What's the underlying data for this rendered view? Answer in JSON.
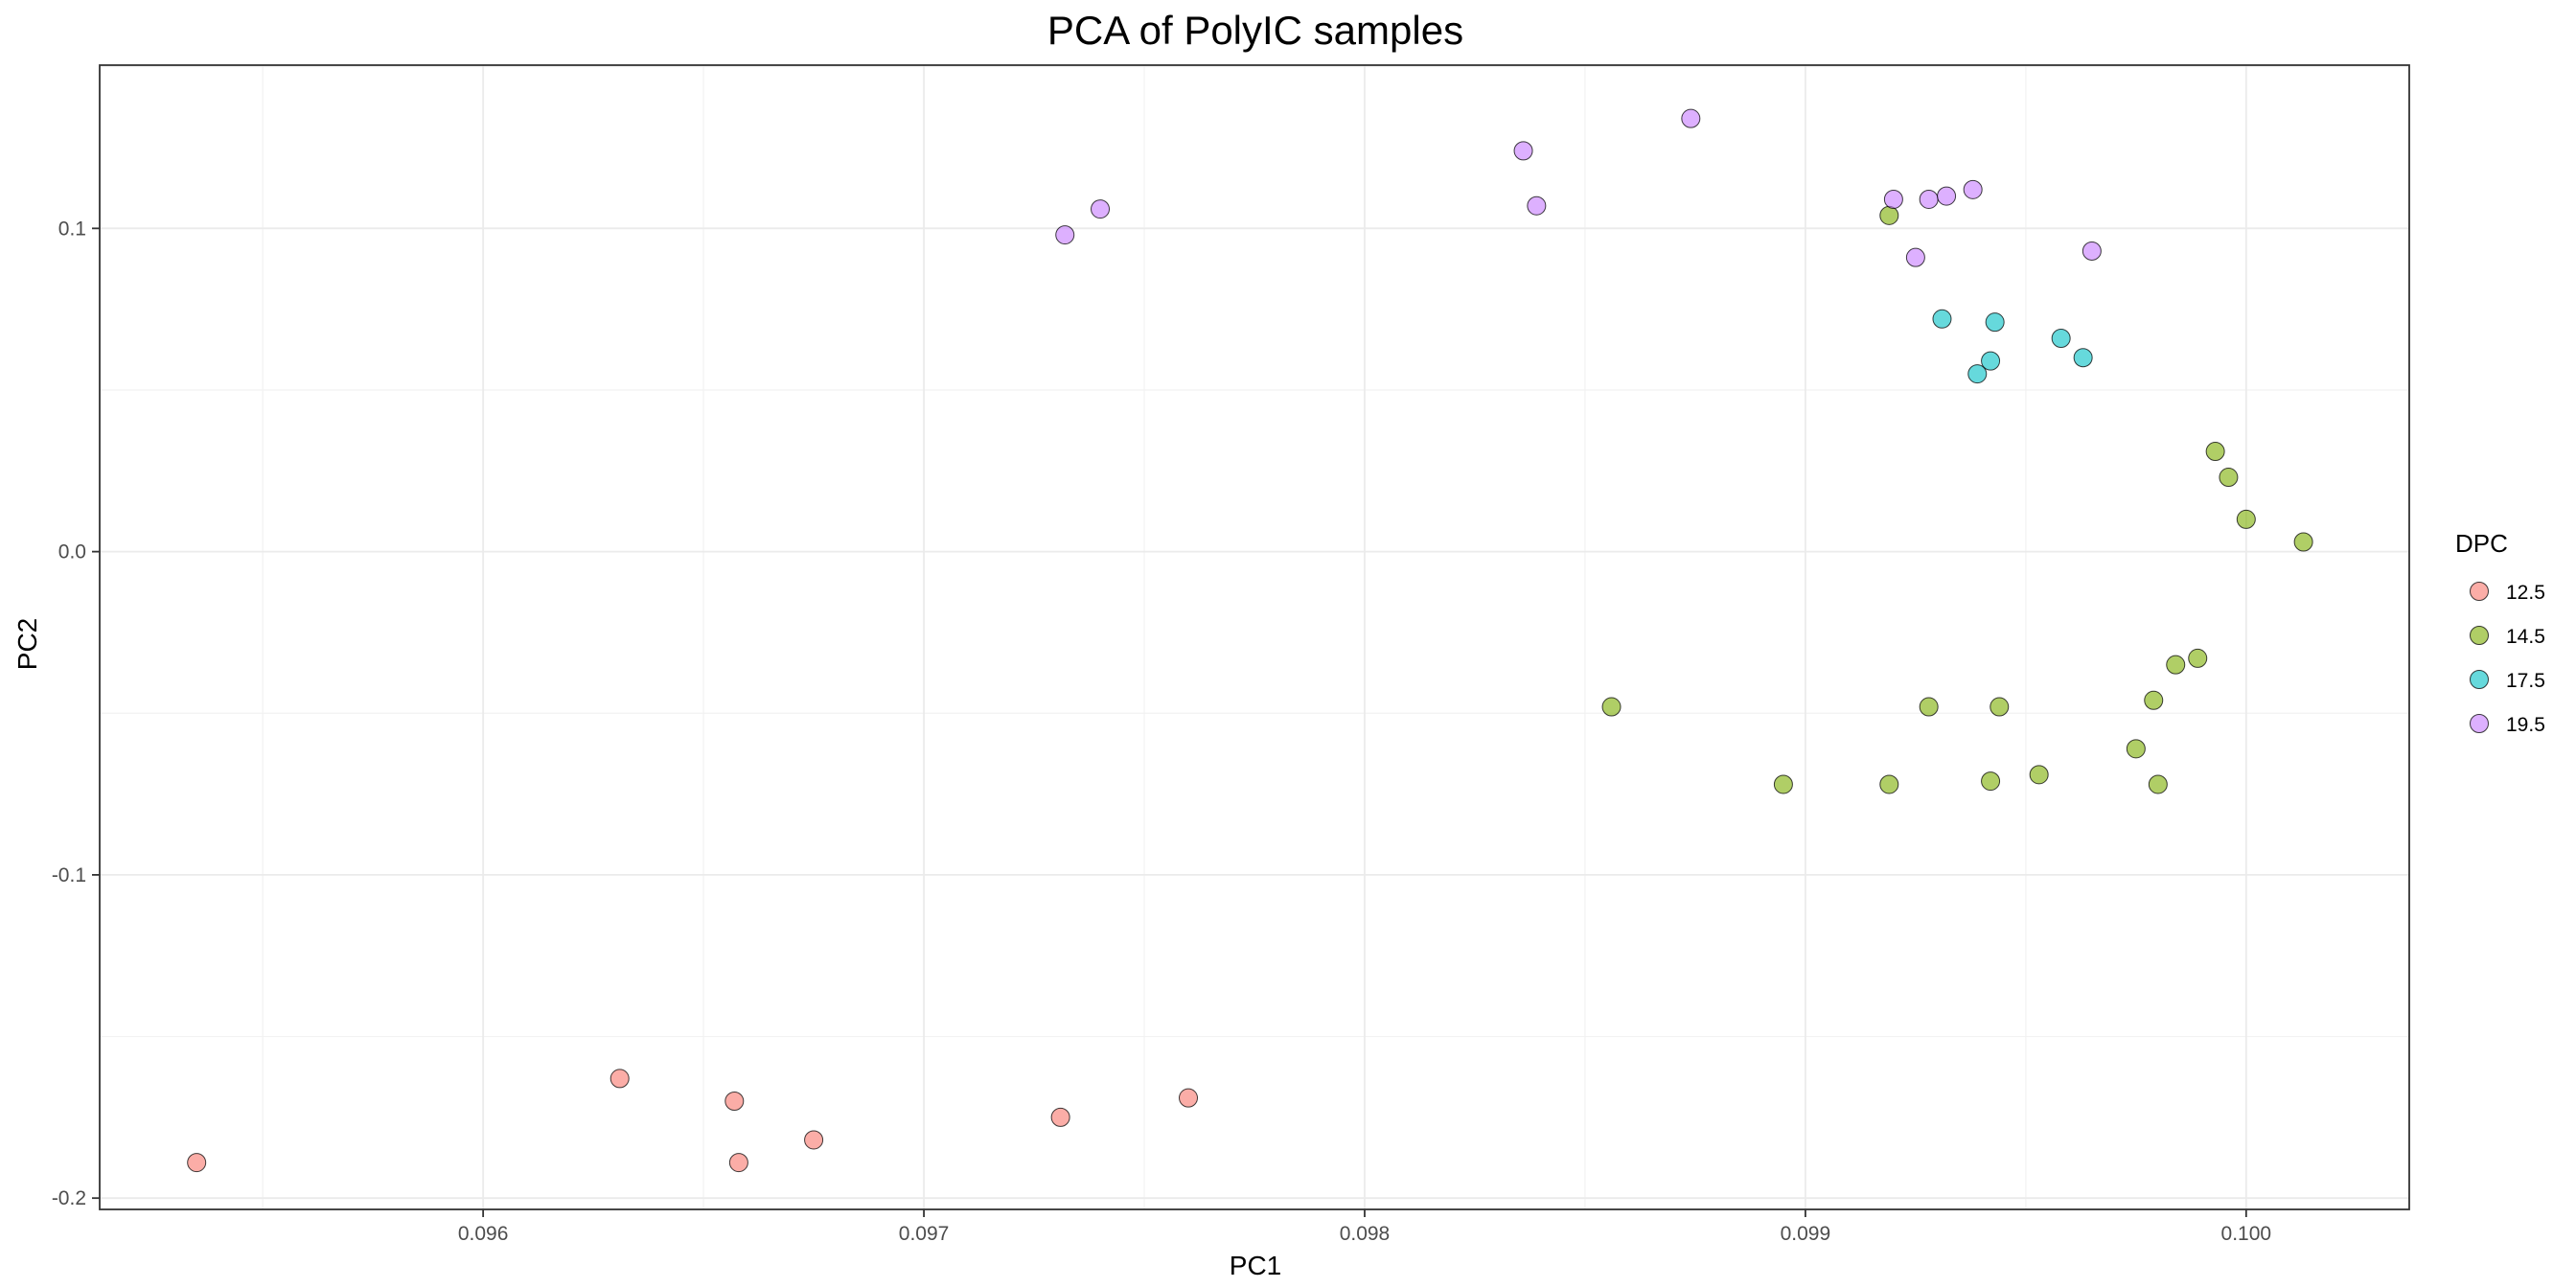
{
  "chart_data": {
    "type": "scatter",
    "title": "PCA of PolyIC samples",
    "xlabel": "PC1",
    "ylabel": "PC2",
    "xlim": [
      0.09513,
      0.10037
    ],
    "ylim": [
      -0.2035,
      0.1505
    ],
    "x_ticks": [
      0.096,
      0.097,
      0.098,
      0.099,
      0.1
    ],
    "x_tick_labels": [
      "0.096",
      "0.097",
      "0.098",
      "0.099",
      "0.100"
    ],
    "y_ticks": [
      -0.2,
      -0.1,
      0.0,
      0.1
    ],
    "y_tick_labels": [
      "-0.2",
      "-0.1",
      "0.0",
      "0.1"
    ],
    "grid": true,
    "legend": {
      "title": "DPC",
      "placement": "right"
    },
    "series": [
      {
        "name": "12.5",
        "color": "#F8766D",
        "points": [
          [
            0.09535,
            -0.189
          ],
          [
            0.09631,
            -0.163
          ],
          [
            0.09657,
            -0.17
          ],
          [
            0.09658,
            -0.189
          ],
          [
            0.09675,
            -0.182
          ],
          [
            0.09731,
            -0.175
          ],
          [
            0.0976,
            -0.169
          ]
        ]
      },
      {
        "name": "14.5",
        "color": "#7CAE00",
        "points": [
          [
            0.09856,
            -0.048
          ],
          [
            0.09895,
            -0.072
          ],
          [
            0.09919,
            0.104
          ],
          [
            0.09919,
            -0.072
          ],
          [
            0.09928,
            -0.048
          ],
          [
            0.09942,
            -0.071
          ],
          [
            0.09944,
            -0.048
          ],
          [
            0.09953,
            -0.069
          ],
          [
            0.09975,
            -0.061
          ],
          [
            0.09979,
            -0.046
          ],
          [
            0.0998,
            -0.072
          ],
          [
            0.09984,
            -0.035
          ],
          [
            0.09989,
            -0.033
          ],
          [
            0.09993,
            0.031
          ],
          [
            0.09996,
            0.023
          ],
          [
            0.1,
            0.01
          ],
          [
            0.10013,
            0.003
          ]
        ]
      },
      {
        "name": "17.5",
        "color": "#00BFC4",
        "points": [
          [
            0.09931,
            0.072
          ],
          [
            0.09939,
            0.055
          ],
          [
            0.09942,
            0.059
          ],
          [
            0.09943,
            0.071
          ],
          [
            0.09958,
            0.066
          ],
          [
            0.09963,
            0.06
          ]
        ]
      },
      {
        "name": "19.5",
        "color": "#C77CFF",
        "points": [
          [
            0.09732,
            0.098
          ],
          [
            0.0974,
            0.106
          ],
          [
            0.09836,
            0.124
          ],
          [
            0.09839,
            0.107
          ],
          [
            0.09874,
            0.134
          ],
          [
            0.0992,
            0.109
          ],
          [
            0.09925,
            0.091
          ],
          [
            0.09928,
            0.109
          ],
          [
            0.09932,
            0.11
          ],
          [
            0.09938,
            0.112
          ],
          [
            0.09965,
            0.093
          ]
        ]
      }
    ]
  }
}
